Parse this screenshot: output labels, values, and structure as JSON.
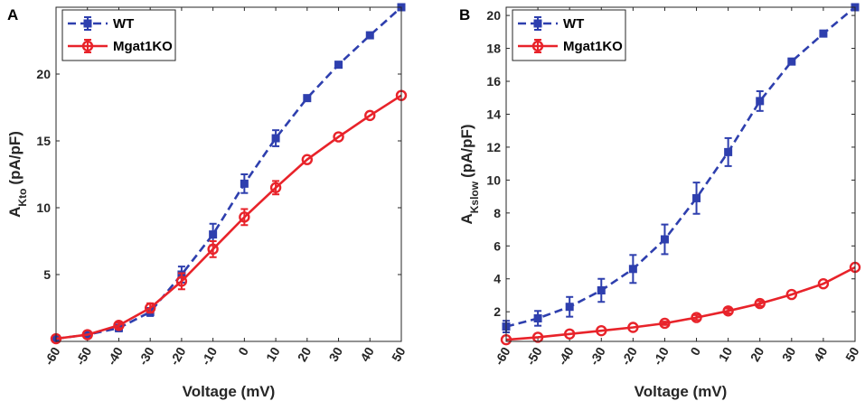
{
  "chart_data": [
    {
      "type": "line",
      "panel_label": "A",
      "xlabel": "Voltage (mV)",
      "ylabel_main": "A",
      "ylabel_sub": "Kto",
      "ylabel_unit": "(pA/pF)",
      "x": [
        -60,
        -50,
        -40,
        -30,
        -20,
        -10,
        0,
        10,
        20,
        30,
        40,
        50
      ],
      "xlim": [
        -60,
        50
      ],
      "ylim": [
        0,
        25
      ],
      "yticks": [
        5,
        10,
        15,
        20
      ],
      "legend_position": "top-left",
      "series": [
        {
          "name": "WT",
          "color": "#2E3FAE",
          "style": "dashed",
          "marker": "square",
          "values": [
            0.2,
            0.5,
            1.0,
            2.2,
            5.0,
            8.0,
            11.8,
            15.2,
            18.2,
            20.7,
            22.9,
            25.0
          ],
          "errors": [
            0,
            0,
            0.25,
            0.3,
            0.6,
            0.8,
            0.7,
            0.6,
            0,
            0,
            0,
            0
          ]
        },
        {
          "name": "Mgat1KO",
          "color": "#E8232A",
          "style": "solid",
          "marker": "circle",
          "values": [
            0.2,
            0.5,
            1.2,
            2.5,
            4.5,
            6.9,
            9.3,
            11.5,
            13.6,
            15.3,
            16.9,
            18.4
          ],
          "errors": [
            0,
            0,
            0.2,
            0.35,
            0.6,
            0.6,
            0.6,
            0.5,
            0,
            0,
            0,
            0
          ]
        }
      ]
    },
    {
      "type": "line",
      "panel_label": "B",
      "xlabel": "Voltage (mV)",
      "ylabel_main": "A",
      "ylabel_sub": "Kslow",
      "ylabel_unit": "(pA/pF)",
      "x": [
        -60,
        -50,
        -40,
        -30,
        -20,
        -10,
        0,
        10,
        20,
        30,
        40,
        50
      ],
      "xlim": [
        -60,
        50
      ],
      "ylim": [
        0.2,
        20.5
      ],
      "yticks": [
        2,
        4,
        6,
        8,
        10,
        12,
        14,
        16,
        18,
        20
      ],
      "legend_position": "top-left",
      "series": [
        {
          "name": "WT",
          "color": "#2E3FAE",
          "style": "dashed",
          "marker": "square",
          "values": [
            1.1,
            1.6,
            2.3,
            3.3,
            4.6,
            6.4,
            8.9,
            11.7,
            14.8,
            17.2,
            18.9,
            20.5
          ],
          "errors": [
            0.35,
            0.45,
            0.6,
            0.7,
            0.85,
            0.9,
            0.95,
            0.85,
            0.6,
            0,
            0,
            0
          ]
        },
        {
          "name": "Mgat1KO",
          "color": "#E8232A",
          "style": "solid",
          "marker": "circle",
          "values": [
            0.3,
            0.45,
            0.65,
            0.85,
            1.05,
            1.3,
            1.65,
            2.05,
            2.5,
            3.05,
            3.7,
            4.7
          ],
          "errors": [
            0,
            0,
            0,
            0,
            0,
            0.1,
            0.15,
            0.15,
            0.15,
            0,
            0,
            0
          ]
        }
      ]
    }
  ]
}
